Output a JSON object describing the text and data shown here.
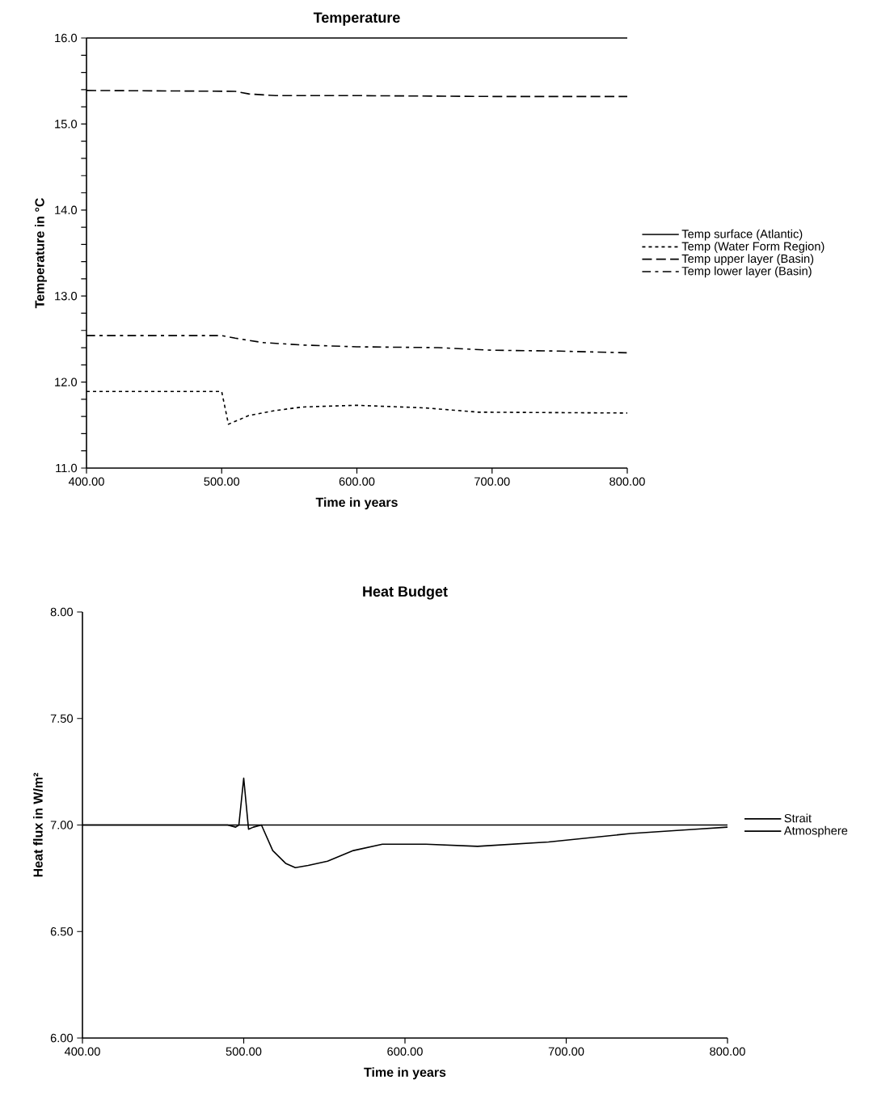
{
  "chart_data": [
    {
      "type": "line",
      "title": "Temperature",
      "xlabel": "Time in years",
      "ylabel": "Temperature in °C",
      "xlim": [
        400,
        800
      ],
      "ylim": [
        11,
        16
      ],
      "xticks": [
        {
          "value": 400,
          "label": "400.00"
        },
        {
          "value": 500,
          "label": "500.00"
        },
        {
          "value": 600,
          "label": "600.00"
        },
        {
          "value": 700,
          "label": "700.00"
        },
        {
          "value": 800,
          "label": "800.00"
        }
      ],
      "yticks": [
        {
          "value": 11,
          "label": "11.0"
        },
        {
          "value": 11.2,
          "label": null
        },
        {
          "value": 11.4,
          "label": null
        },
        {
          "value": 11.6,
          "label": null
        },
        {
          "value": 11.8,
          "label": null
        },
        {
          "value": 12,
          "label": "12.0"
        },
        {
          "value": 12.2,
          "label": null
        },
        {
          "value": 12.4,
          "label": null
        },
        {
          "value": 12.6,
          "label": null
        },
        {
          "value": 12.8,
          "label": null
        },
        {
          "value": 13,
          "label": "13.0"
        },
        {
          "value": 13.2,
          "label": null
        },
        {
          "value": 13.4,
          "label": null
        },
        {
          "value": 13.6,
          "label": null
        },
        {
          "value": 13.8,
          "label": null
        },
        {
          "value": 14,
          "label": "14.0"
        },
        {
          "value": 14.2,
          "label": null
        },
        {
          "value": 14.4,
          "label": null
        },
        {
          "value": 14.6,
          "label": null
        },
        {
          "value": 14.8,
          "label": null
        },
        {
          "value": 15,
          "label": "15.0"
        },
        {
          "value": 15.2,
          "label": null
        },
        {
          "value": 15.4,
          "label": null
        },
        {
          "value": 15.6,
          "label": null
        },
        {
          "value": 15.8,
          "label": null
        },
        {
          "value": 16,
          "label": "16.0"
        }
      ],
      "grid": false,
      "legend": "right",
      "series": [
        {
          "name": "Temp surface (Atlantic)",
          "color": "#000000",
          "line_style": "solid",
          "x": [
            400,
            800
          ],
          "values": [
            16.0,
            16.0
          ]
        },
        {
          "name": "Temp (Water Form Region)",
          "color": "#000000",
          "line_style": "dotted",
          "x": [
            400,
            500,
            505,
            520,
            540,
            560,
            600,
            650,
            690,
            800
          ],
          "values": [
            11.89,
            11.89,
            11.51,
            11.61,
            11.67,
            11.71,
            11.73,
            11.7,
            11.65,
            11.64
          ]
        },
        {
          "name": "Temp upper layer (Basin)",
          "color": "#000000",
          "line_style": "dashed",
          "x": [
            400,
            510,
            520,
            540,
            600,
            700,
            800
          ],
          "values": [
            15.39,
            15.38,
            15.35,
            15.33,
            15.33,
            15.32,
            15.32
          ]
        },
        {
          "name": "Temp lower layer (Basin)",
          "color": "#000000",
          "line_style": "dashdot",
          "x": [
            400,
            500,
            510,
            530,
            560,
            600,
            660,
            700,
            750,
            800
          ],
          "values": [
            12.54,
            12.54,
            12.51,
            12.46,
            12.43,
            12.41,
            12.4,
            12.37,
            12.36,
            12.34
          ]
        }
      ]
    },
    {
      "type": "line",
      "title": "Heat Budget",
      "xlabel": "Time in years",
      "ylabel": "Heat flux in W/m²",
      "xlim": [
        400,
        800
      ],
      "ylim": [
        6,
        8
      ],
      "xticks": [
        {
          "value": 400,
          "label": "400.00"
        },
        {
          "value": 500,
          "label": "500.00"
        },
        {
          "value": 600,
          "label": "600.00"
        },
        {
          "value": 700,
          "label": "700.00"
        },
        {
          "value": 800,
          "label": "800.00"
        }
      ],
      "yticks": [
        {
          "value": 6,
          "label": "6.00"
        },
        {
          "value": 6.5,
          "label": "6.50"
        },
        {
          "value": 7,
          "label": "7.00"
        },
        {
          "value": 7.5,
          "label": "7.50"
        },
        {
          "value": 8,
          "label": "8.00"
        }
      ],
      "grid": false,
      "legend": "right",
      "series": [
        {
          "name": "Strait",
          "color": "#000000",
          "line_style": "solid",
          "x": [
            400,
            430,
            460,
            490,
            495,
            497,
            500,
            503,
            506,
            511,
            518,
            526,
            532,
            540,
            552,
            568,
            586,
            613,
            645,
            689,
            740,
            780,
            800
          ],
          "values": [
            7.0,
            7.0,
            7.0,
            7.0,
            6.99,
            7.0,
            7.22,
            6.98,
            6.99,
            7.0,
            6.88,
            6.82,
            6.8,
            6.81,
            6.83,
            6.88,
            6.91,
            6.91,
            6.9,
            6.92,
            6.96,
            6.98,
            6.99
          ]
        },
        {
          "name": "Atmosphere",
          "color": "#000000",
          "line_style": "solid",
          "x": [
            400,
            800
          ],
          "values": [
            7.0,
            7.0
          ]
        }
      ]
    }
  ]
}
